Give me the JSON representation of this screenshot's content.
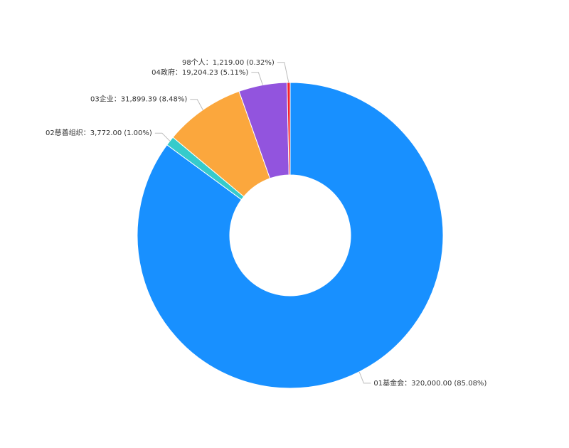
{
  "chart_data": {
    "type": "donut",
    "categories": [
      "01基金会",
      "02慈善组织",
      "03企业",
      "04政府",
      "98个人"
    ],
    "values": [
      320000,
      3772,
      31899.39,
      19204.23,
      1219
    ],
    "value_labels": [
      "320,000.00",
      "3,772.00",
      "31,899.39",
      "19,204.23",
      "1,219.00"
    ],
    "percents": [
      85.08,
      1.0,
      8.48,
      5.11,
      0.32
    ],
    "percent_labels": [
      "(85.08%)",
      "(1.00%)",
      "(8.48%)",
      "(5.11%)",
      "(0.32%)"
    ],
    "label_separator": "：",
    "colors": [
      "#1890ff",
      "#36cbcb",
      "#fba73d",
      "#9254de",
      "#f5222d"
    ]
  }
}
